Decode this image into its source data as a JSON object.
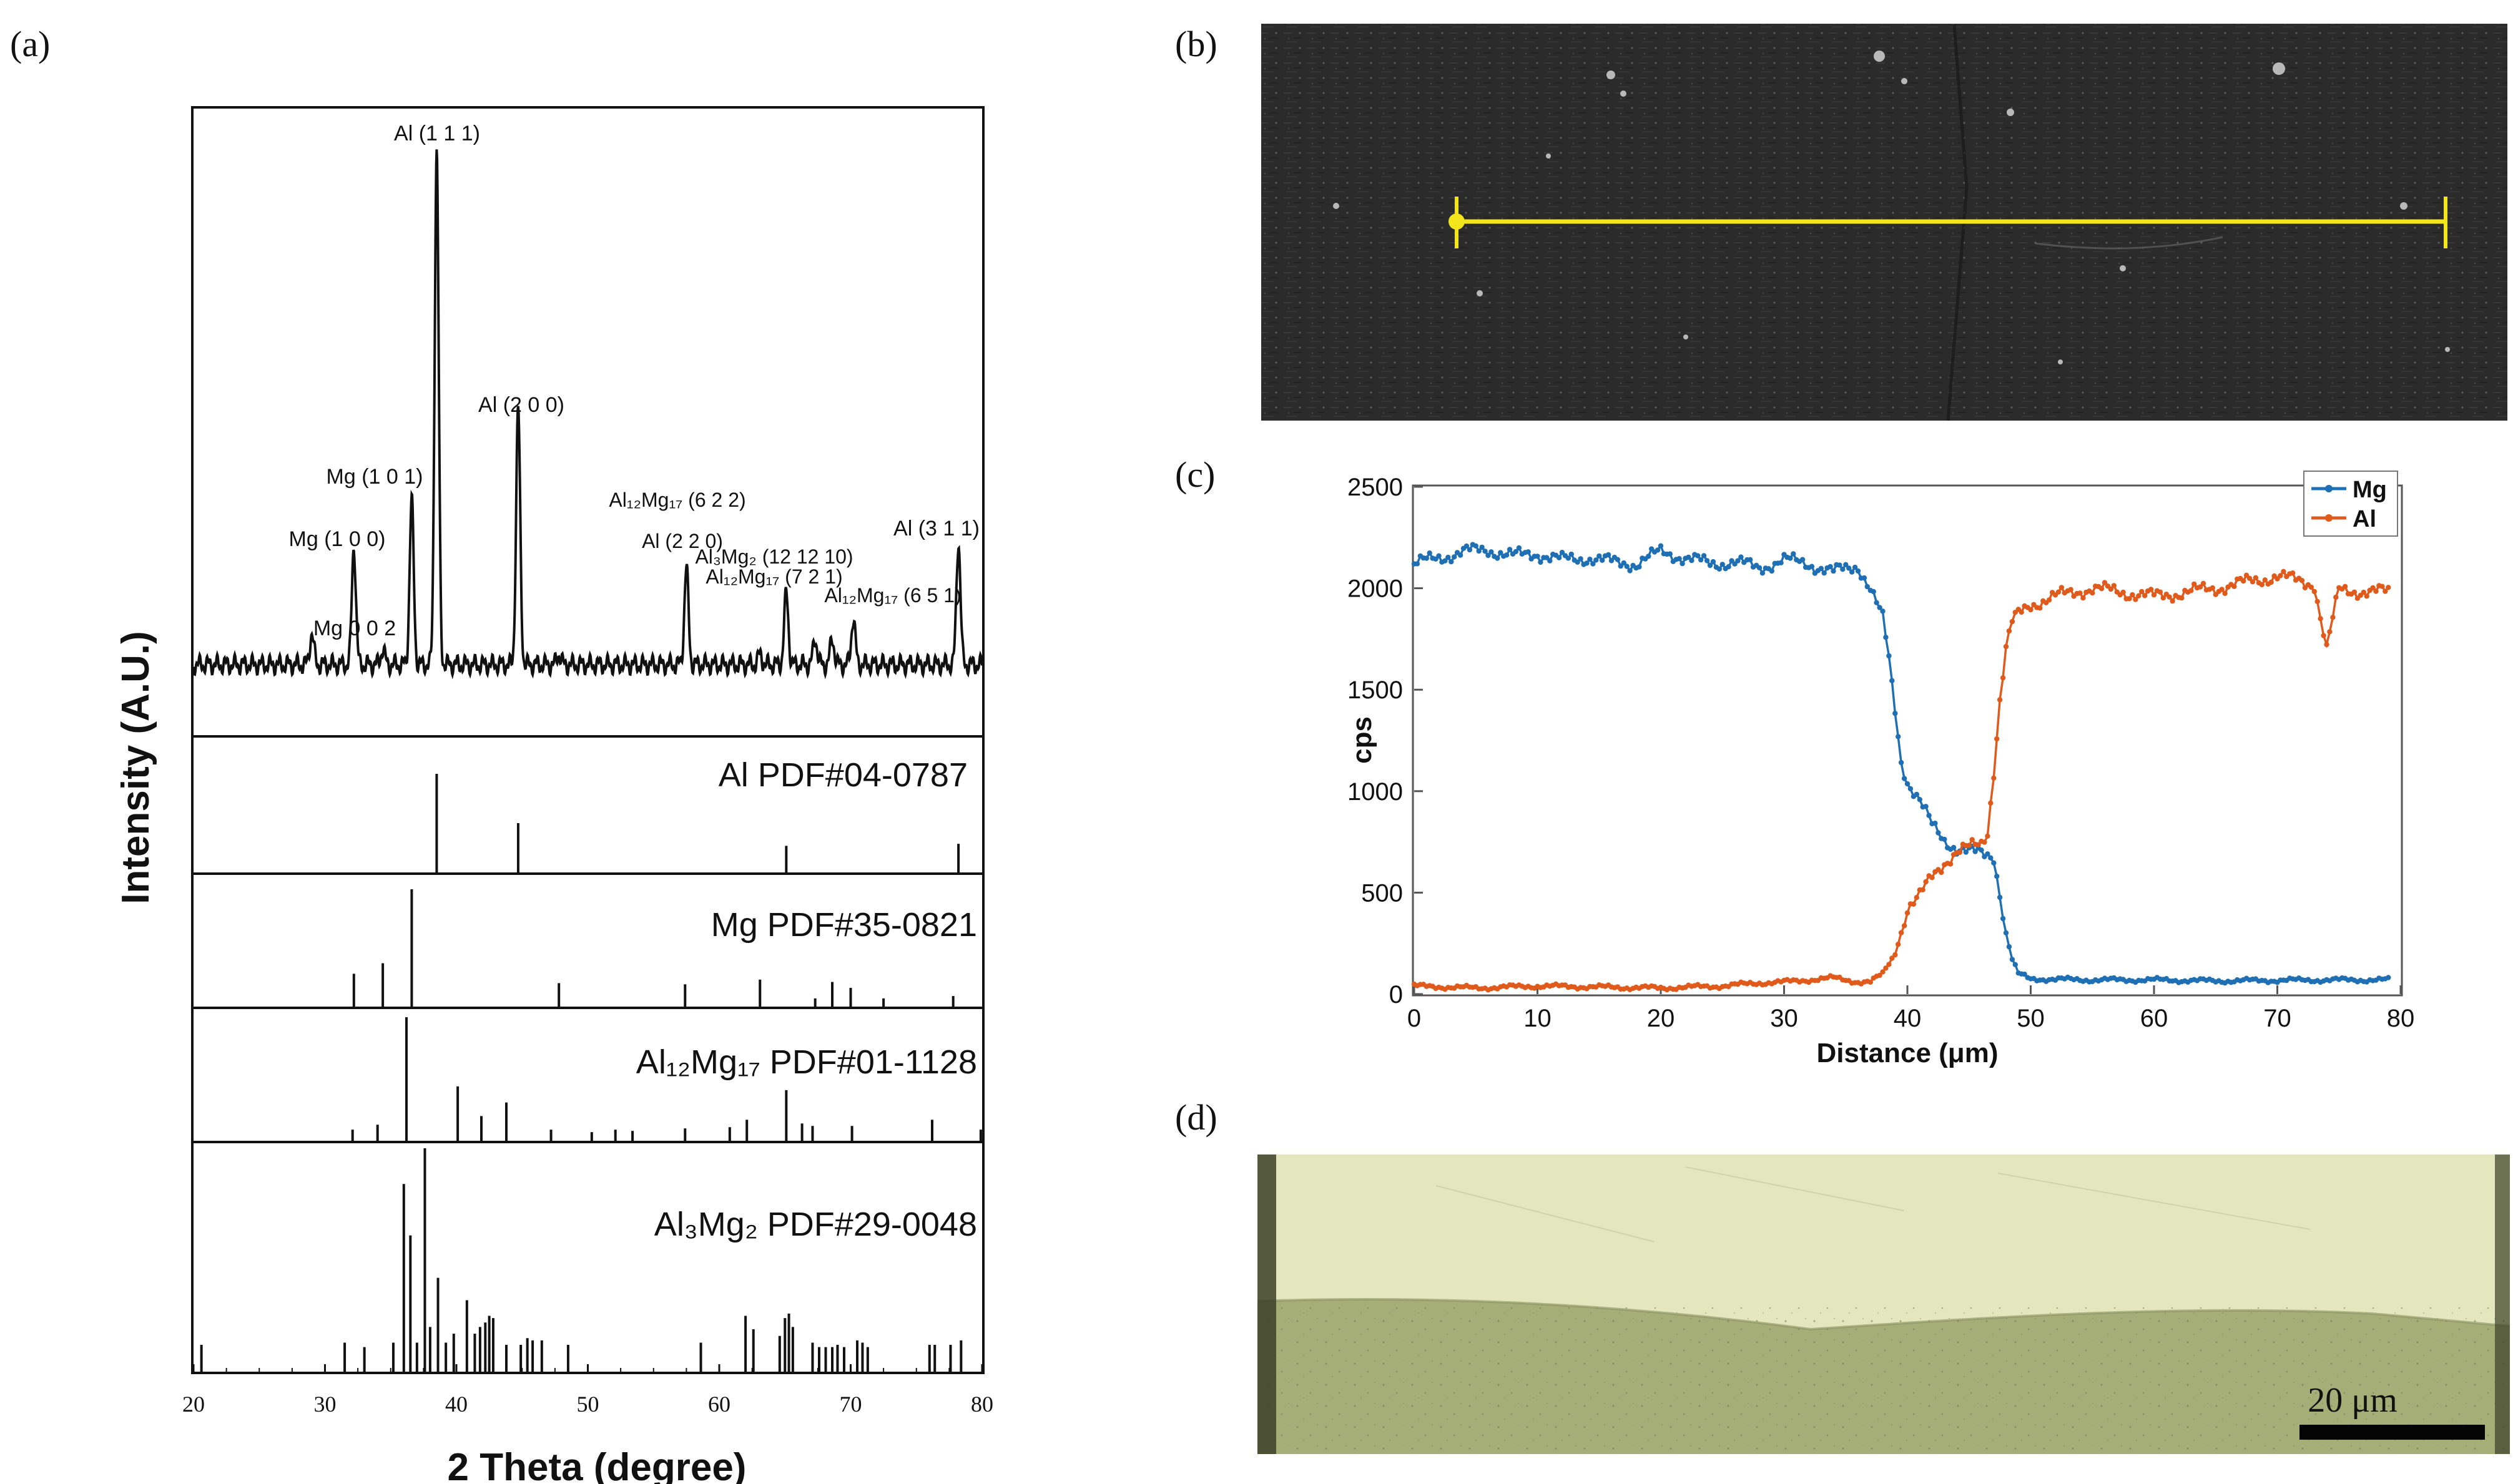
{
  "panel_labels": [
    "(a)",
    "(b)",
    "(c)",
    "(d)"
  ],
  "chart_data": [
    {
      "type": "line",
      "title": "",
      "panel": "(a)",
      "xlabel": "2 Theta (degree)",
      "ylabel": "Intensity (A.U.)",
      "xlim": [
        20,
        80
      ],
      "xticks": [
        "20",
        "30",
        "40",
        "50",
        "60",
        "70",
        "80"
      ],
      "measured_peaks": [
        {
          "x": 29.0,
          "y": 0.06
        },
        {
          "x": 32.2,
          "y": 0.23
        },
        {
          "x": 34.4,
          "y": 0.03
        },
        {
          "x": 36.6,
          "y": 0.32
        },
        {
          "x": 38.5,
          "y": 1.0
        },
        {
          "x": 44.7,
          "y": 0.5
        },
        {
          "x": 47.8,
          "y": 0.02
        },
        {
          "x": 57.5,
          "y": 0.19
        },
        {
          "x": 63.1,
          "y": 0.02
        },
        {
          "x": 65.1,
          "y": 0.14
        },
        {
          "x": 67.3,
          "y": 0.05
        },
        {
          "x": 68.6,
          "y": 0.05
        },
        {
          "x": 70.2,
          "y": 0.09
        },
        {
          "x": 78.2,
          "y": 0.24
        }
      ],
      "peak_labels": [
        {
          "text": "Al (1 1 1)",
          "x": 38.5
        },
        {
          "text": "Al (2 0 0)",
          "x": 44.7
        },
        {
          "text": "Mg (1 0 1)",
          "x": 36.6
        },
        {
          "text": "Mg (1 0 0)",
          "x": 32.2
        },
        {
          "text": "Mg  0 0 2",
          "x": 34.4
        },
        {
          "text": "Al₁₂Mg₁₇ (6 2 2)",
          "x": 56.5
        },
        {
          "text": "Al (2 2 0)",
          "x": 57.5
        },
        {
          "text": "Al₃Mg₂ (12 12 10)",
          "x": 64.8
        },
        {
          "text": "Al₁₂Mg₁₇ (7 2 1)",
          "x": 64.8
        },
        {
          "text": "Al₁₂Mg₁₇ (6 5 1)",
          "x": 70.2
        },
        {
          "text": "Al (3 1 1)",
          "x": 78.2
        }
      ],
      "references": [
        {
          "name": "Al PDF#04-0787",
          "lines": [
            {
              "x": 38.5,
              "h": 1.0
            },
            {
              "x": 44.7,
              "h": 0.5
            },
            {
              "x": 65.1,
              "h": 0.27
            },
            {
              "x": 78.2,
              "h": 0.29
            }
          ]
        },
        {
          "name": "Mg PDF#35-0821",
          "lines": [
            {
              "x": 32.2,
              "h": 0.28
            },
            {
              "x": 34.4,
              "h": 0.37
            },
            {
              "x": 36.6,
              "h": 1.0
            },
            {
              "x": 47.8,
              "h": 0.2
            },
            {
              "x": 57.4,
              "h": 0.19
            },
            {
              "x": 63.1,
              "h": 0.23
            },
            {
              "x": 67.3,
              "h": 0.07
            },
            {
              "x": 68.6,
              "h": 0.21
            },
            {
              "x": 70.0,
              "h": 0.16
            },
            {
              "x": 72.5,
              "h": 0.07
            },
            {
              "x": 77.8,
              "h": 0.09
            }
          ]
        },
        {
          "name": "Al₁₂Mg₁₇ PDF#01-1128",
          "lines": [
            {
              "x": 32.1,
              "h": 0.09
            },
            {
              "x": 34.0,
              "h": 0.13
            },
            {
              "x": 36.2,
              "h": 1.0
            },
            {
              "x": 40.1,
              "h": 0.44
            },
            {
              "x": 41.9,
              "h": 0.2
            },
            {
              "x": 43.8,
              "h": 0.31
            },
            {
              "x": 47.2,
              "h": 0.09
            },
            {
              "x": 50.3,
              "h": 0.07
            },
            {
              "x": 52.1,
              "h": 0.09
            },
            {
              "x": 53.4,
              "h": 0.08
            },
            {
              "x": 57.4,
              "h": 0.1
            },
            {
              "x": 60.8,
              "h": 0.11
            },
            {
              "x": 62.1,
              "h": 0.17
            },
            {
              "x": 65.1,
              "h": 0.41
            },
            {
              "x": 66.3,
              "h": 0.14
            },
            {
              "x": 67.1,
              "h": 0.12
            },
            {
              "x": 70.1,
              "h": 0.12
            },
            {
              "x": 76.2,
              "h": 0.17
            },
            {
              "x": 79.9,
              "h": 0.09
            }
          ]
        },
        {
          "name": "Al₃Mg₂ PDF#29-0048",
          "lines": [
            {
              "x": 20.6,
              "h": 0.12
            },
            {
              "x": 31.5,
              "h": 0.13
            },
            {
              "x": 33.0,
              "h": 0.11
            },
            {
              "x": 35.2,
              "h": 0.13
            },
            {
              "x": 36.0,
              "h": 0.84
            },
            {
              "x": 36.5,
              "h": 0.61
            },
            {
              "x": 37.0,
              "h": 0.13
            },
            {
              "x": 37.6,
              "h": 1.0
            },
            {
              "x": 38.0,
              "h": 0.2
            },
            {
              "x": 38.6,
              "h": 0.42
            },
            {
              "x": 39.2,
              "h": 0.13
            },
            {
              "x": 39.8,
              "h": 0.17
            },
            {
              "x": 40.8,
              "h": 0.32
            },
            {
              "x": 41.4,
              "h": 0.17
            },
            {
              "x": 41.8,
              "h": 0.2
            },
            {
              "x": 42.2,
              "h": 0.22
            },
            {
              "x": 42.5,
              "h": 0.25
            },
            {
              "x": 42.8,
              "h": 0.24
            },
            {
              "x": 43.8,
              "h": 0.12
            },
            {
              "x": 44.9,
              "h": 0.12
            },
            {
              "x": 45.4,
              "h": 0.15
            },
            {
              "x": 45.8,
              "h": 0.14
            },
            {
              "x": 46.5,
              "h": 0.14
            },
            {
              "x": 48.5,
              "h": 0.12
            },
            {
              "x": 58.6,
              "h": 0.13
            },
            {
              "x": 62.0,
              "h": 0.25
            },
            {
              "x": 62.6,
              "h": 0.19
            },
            {
              "x": 64.6,
              "h": 0.16
            },
            {
              "x": 65.0,
              "h": 0.24
            },
            {
              "x": 65.3,
              "h": 0.26
            },
            {
              "x": 65.6,
              "h": 0.2
            },
            {
              "x": 67.1,
              "h": 0.13
            },
            {
              "x": 67.6,
              "h": 0.11
            },
            {
              "x": 68.1,
              "h": 0.11
            },
            {
              "x": 68.6,
              "h": 0.11
            },
            {
              "x": 69.0,
              "h": 0.12
            },
            {
              "x": 69.5,
              "h": 0.11
            },
            {
              "x": 70.5,
              "h": 0.14
            },
            {
              "x": 70.9,
              "h": 0.13
            },
            {
              "x": 71.3,
              "h": 0.11
            },
            {
              "x": 76.0,
              "h": 0.12
            },
            {
              "x": 76.4,
              "h": 0.12
            },
            {
              "x": 77.6,
              "h": 0.12
            },
            {
              "x": 78.4,
              "h": 0.14
            }
          ]
        }
      ]
    },
    {
      "type": "line",
      "title": "",
      "panel": "(c)",
      "xlabel": "Distance (μm)",
      "ylabel": "cps",
      "xlim": [
        0,
        80
      ],
      "ylim": [
        0,
        2500
      ],
      "xticks": [
        "0",
        "10",
        "20",
        "30",
        "40",
        "50",
        "60",
        "70",
        "80"
      ],
      "yticks": [
        "0",
        "500",
        "1000",
        "1500",
        "2000",
        "2500"
      ],
      "legend_position": "top-right",
      "series": [
        {
          "name": "Mg",
          "color": "#1f6fb4",
          "x": [
            0,
            2,
            4,
            6,
            8,
            10,
            12,
            14,
            16,
            18,
            20,
            22,
            24,
            26,
            28,
            30,
            32,
            34,
            36,
            37,
            38,
            38.5,
            39,
            39.5,
            40,
            41,
            42,
            43,
            44,
            45,
            46,
            47,
            47.5,
            48,
            48.5,
            49,
            50,
            55,
            60,
            65,
            70,
            75,
            79
          ],
          "values": [
            2120,
            2150,
            2180,
            2190,
            2160,
            2170,
            2140,
            2150,
            2130,
            2120,
            2180,
            2150,
            2120,
            2130,
            2100,
            2140,
            2120,
            2080,
            2110,
            2000,
            1850,
            1650,
            1400,
            1150,
            1050,
            950,
            830,
            760,
            720,
            700,
            690,
            680,
            500,
            300,
            170,
            100,
            75,
            70,
            70,
            65,
            68,
            70,
            70
          ]
        },
        {
          "name": "Al",
          "color": "#e05a1c",
          "x": [
            0,
            5,
            10,
            15,
            20,
            25,
            28,
            30,
            32,
            34,
            36,
            37,
            38,
            39,
            40,
            41,
            42,
            43,
            44,
            45,
            46,
            46.5,
            47,
            47.5,
            48,
            48.5,
            49,
            50,
            52,
            55,
            60,
            65,
            70,
            73,
            74,
            75,
            79
          ],
          "values": [
            40,
            30,
            40,
            35,
            30,
            40,
            55,
            60,
            70,
            80,
            60,
            60,
            100,
            200,
            420,
            480,
            580,
            650,
            700,
            720,
            740,
            800,
            1100,
            1450,
            1700,
            1830,
            1870,
            1920,
            1960,
            2000,
            1960,
            2000,
            2060,
            2020,
            1700,
            1990,
            1980
          ]
        }
      ]
    }
  ],
  "sem_image": {
    "line_color": "#f2e51c"
  },
  "micrograph": {
    "scale_bar_label": "20 μm",
    "top_color": "#e4e7bd",
    "bottom_color": "#a6ae78"
  }
}
